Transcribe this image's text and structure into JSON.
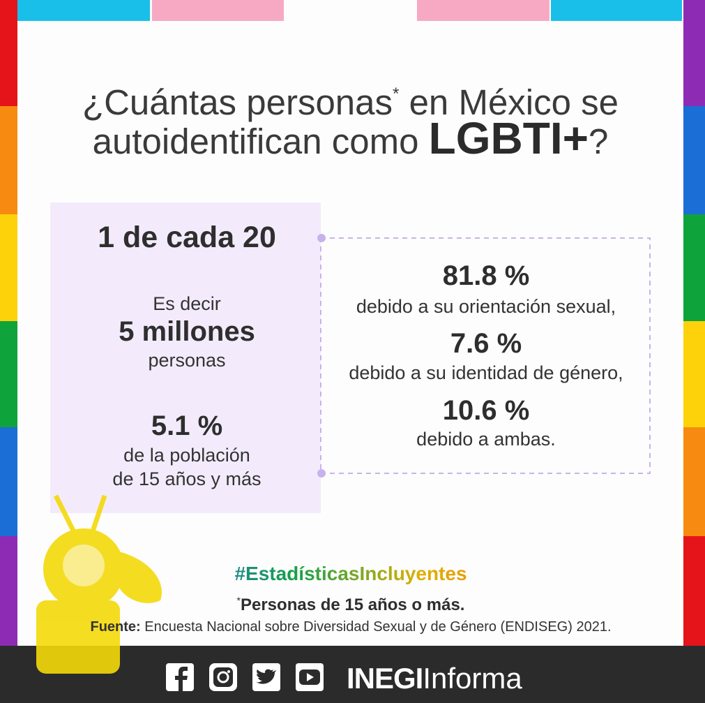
{
  "header": {
    "title_start": "¿Cuántas personas",
    "title_asterisk": "*",
    "title_end": "en México se",
    "title_line2": "autoidentifican como",
    "title_emphasis": "LGBTI+",
    "title_question": "?"
  },
  "left_panel": {
    "ratio": "1 de cada 20",
    "intro": "Es decir",
    "count": "5 millones",
    "count_unit": "personas",
    "percent": "5.1 %",
    "percent_line1": "de la población",
    "percent_line2": "de 15 años y más"
  },
  "right_panel": {
    "items": [
      {
        "percent": "81.8 %",
        "reason": "debido a su orientación sexual,"
      },
      {
        "percent": "7.6 %",
        "reason": "debido a su identidad de género,"
      },
      {
        "percent": "10.6 %",
        "reason": "debido a ambas."
      }
    ]
  },
  "footer": {
    "hashtag": "#EstadísticasIncluyentes",
    "note_asterisk": "*",
    "note": "Personas de 15 años o más.",
    "source_label": "Fuente:",
    "source": "Encuesta Nacional sobre Diversidad Sexual y de Género (ENDISEG) 2021.",
    "brand": "INEGI",
    "brand_suffix": "Informa"
  }
}
